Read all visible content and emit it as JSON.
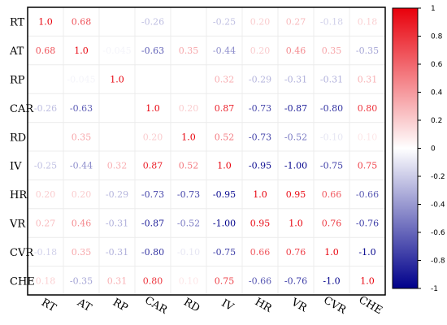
{
  "chart_data": {
    "type": "heatmap",
    "title": "",
    "xlabel": "",
    "ylabel": "",
    "row_labels": [
      "RT",
      "AT",
      "RP",
      "CAR",
      "RD",
      "IV",
      "HR",
      "VR",
      "CVR",
      "CHE"
    ],
    "col_labels": [
      "RT",
      "AT",
      "RP",
      "CAR",
      "RD",
      "IV",
      "HR",
      "VR",
      "CVR",
      "CHE"
    ],
    "values": [
      [
        1.0,
        0.68,
        null,
        -0.26,
        null,
        -0.25,
        0.2,
        0.27,
        -0.18,
        0.18
      ],
      [
        0.68,
        1.0,
        -0.045,
        -0.63,
        0.35,
        -0.44,
        0.2,
        0.46,
        0.35,
        -0.35
      ],
      [
        null,
        -0.045,
        1.0,
        null,
        null,
        0.32,
        -0.29,
        -0.31,
        -0.31,
        0.31
      ],
      [
        -0.26,
        -0.63,
        null,
        1.0,
        0.2,
        0.87,
        -0.73,
        -0.87,
        -0.8,
        0.8
      ],
      [
        null,
        0.35,
        null,
        0.2,
        1.0,
        0.52,
        -0.73,
        -0.52,
        -0.1,
        0.1
      ],
      [
        -0.25,
        -0.44,
        0.32,
        0.87,
        0.52,
        1.0,
        -0.95,
        -1.0,
        -0.75,
        0.75
      ],
      [
        0.2,
        0.2,
        -0.29,
        -0.73,
        -0.73,
        -0.95,
        1.0,
        0.95,
        0.66,
        -0.66
      ],
      [
        0.27,
        0.46,
        -0.31,
        -0.87,
        -0.52,
        -1.0,
        0.95,
        1.0,
        0.76,
        -0.76
      ],
      [
        -0.18,
        0.35,
        -0.31,
        -0.8,
        -0.1,
        -0.75,
        0.66,
        0.76,
        1.0,
        -1.0
      ],
      [
        0.18,
        -0.35,
        0.31,
        0.8,
        0.1,
        0.75,
        -0.66,
        -0.76,
        -1.0,
        1.0
      ]
    ],
    "display_text": [
      [
        "1.0",
        "0.68",
        "",
        "-0.26",
        "",
        "-0.25",
        "0.20",
        "0.27",
        "-0.18",
        "0.18"
      ],
      [
        "0.68",
        "1.0",
        "-0.045",
        "-0.63",
        "0.35",
        "-0.44",
        "0.20",
        "0.46",
        "0.35",
        "-0.35"
      ],
      [
        "",
        "-0.045",
        "1.0",
        "",
        "",
        "0.32",
        "-0.29",
        "-0.31",
        "-0.31",
        "0.31"
      ],
      [
        "-0.26",
        "-0.63",
        "",
        "1.0",
        "0.20",
        "0.87",
        "-0.73",
        "-0.87",
        "-0.80",
        "0.80"
      ],
      [
        "",
        "0.35",
        "",
        "0.20",
        "1.0",
        "0.52",
        "-0.73",
        "-0.52",
        "-0.10",
        "0.10"
      ],
      [
        "-0.25",
        "-0.44",
        "0.32",
        "0.87",
        "0.52",
        "1.0",
        "-0.95",
        "-1.00",
        "-0.75",
        "0.75"
      ],
      [
        "0.20",
        "0.20",
        "-0.29",
        "-0.73",
        "-0.73",
        "-0.95",
        "1.0",
        "0.95",
        "0.66",
        "-0.66"
      ],
      [
        "0.27",
        "0.46",
        "-0.31",
        "-0.87",
        "-0.52",
        "-1.00",
        "0.95",
        "1.0",
        "0.76",
        "-0.76"
      ],
      [
        "-0.18",
        "0.35",
        "-0.31",
        "-0.80",
        "-0.10",
        "-0.75",
        "0.66",
        "0.76",
        "1.0",
        "-1.0"
      ],
      [
        "0.18",
        "-0.35",
        "0.31",
        "0.80",
        "0.10",
        "0.75",
        "-0.66",
        "-0.76",
        "-1.0",
        "1.0"
      ]
    ],
    "color_scale": {
      "min": -1,
      "max": 1,
      "low_color": "#00008b",
      "mid_color": "#ffffff",
      "high_color": "#e8000b",
      "ticks": [
        1,
        0.8,
        0.6,
        0.4,
        0.2,
        0,
        -0.2,
        -0.4,
        -0.6,
        -0.8,
        -1
      ],
      "tick_labels": [
        "1",
        "0.8",
        "0.6",
        "0.4",
        "0.2",
        "0",
        "-0.2",
        "-0.4",
        "-0.6",
        "-0.8",
        "-1"
      ]
    },
    "grid": true,
    "legend": "colorbar-right"
  }
}
